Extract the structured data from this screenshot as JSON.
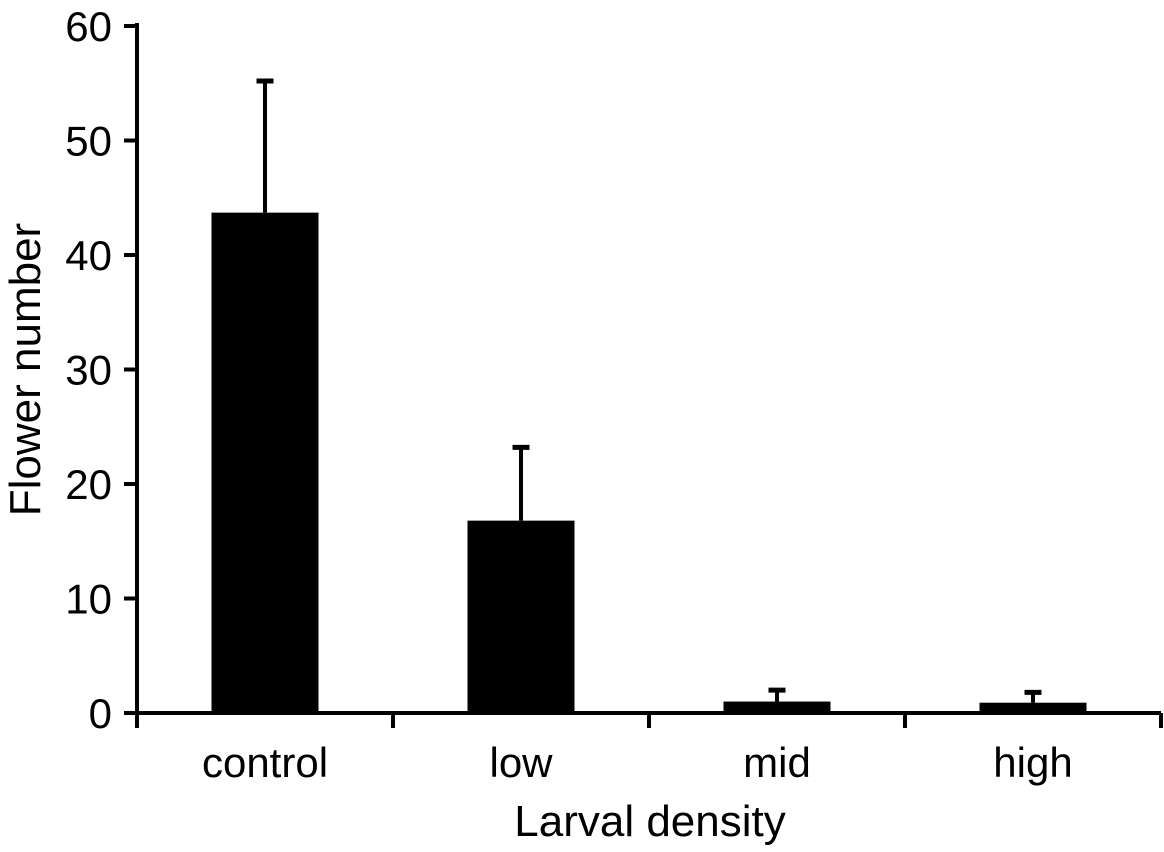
{
  "chart_data": {
    "type": "bar",
    "title": "",
    "xlabel": "Larval density",
    "ylabel": "Flower number",
    "categories": [
      "control",
      "low",
      "mid",
      "high"
    ],
    "values": [
      43.7,
      16.8,
      1.0,
      0.9
    ],
    "error_upper": [
      11.5,
      6.4,
      1.0,
      0.9
    ],
    "ylim": [
      0,
      60
    ],
    "yticks": [
      0,
      10,
      20,
      30,
      40,
      50,
      60
    ],
    "bar_color": "#000000",
    "axis_color": "#000000",
    "background_color": "#ffffff",
    "grid": false,
    "legend": null,
    "error_bar_direction": "upper"
  }
}
